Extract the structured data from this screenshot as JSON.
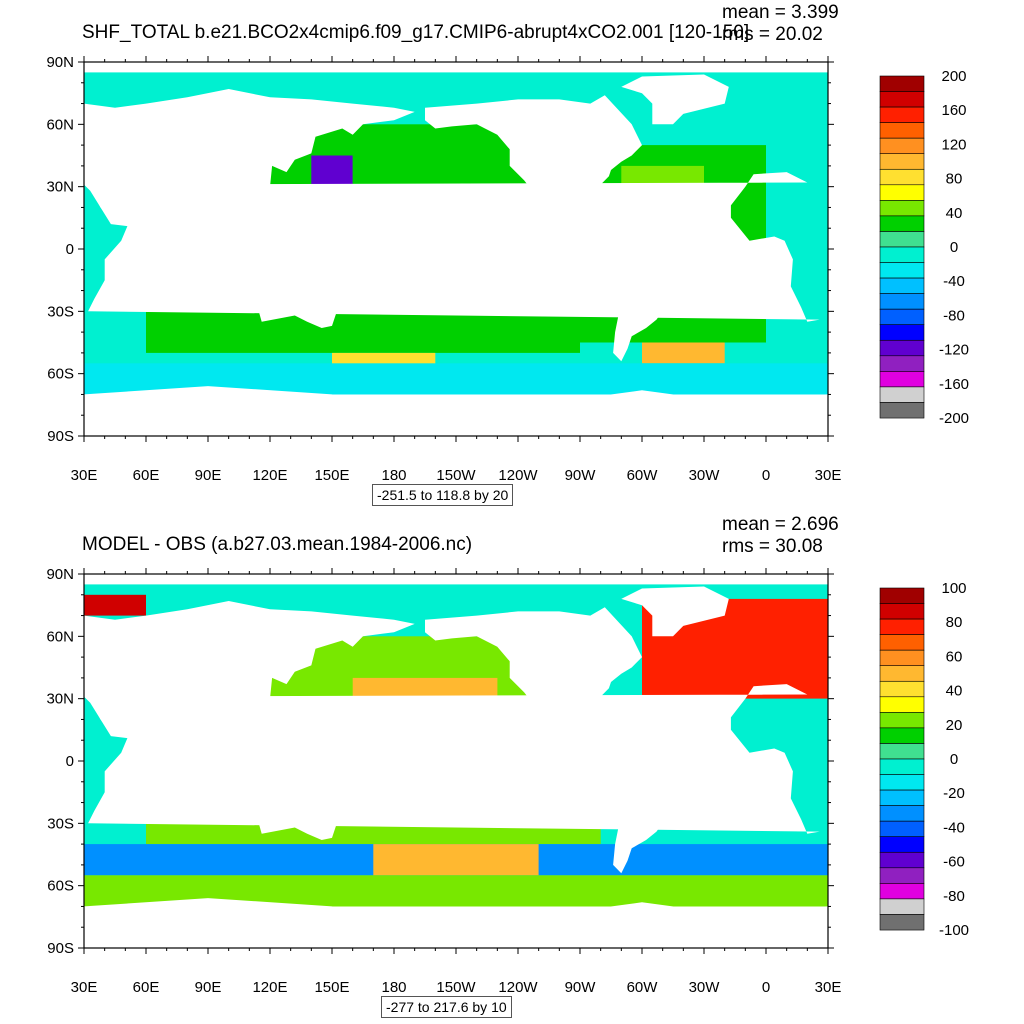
{
  "panels": [
    {
      "title": "SHF_TOTAL b.e21.BCO2x4cmip6.f09_g17.CMIP6-abrupt4xCO2.001 [120-150]",
      "mean_label": "mean = 3.399",
      "rms_label": "rms = 20.02",
      "contour_info": "-251.5 to 118.8 by 20",
      "colorbar": {
        "labels": [
          "200",
          "160",
          "120",
          "80",
          "40",
          "0",
          "-40",
          "-80",
          "-120",
          "-160",
          "-200"
        ],
        "colors": [
          "#a00000",
          "#d00000",
          "#ff2000",
          "#ff6000",
          "#ff9020",
          "#ffb830",
          "#ffe030",
          "#ffff00",
          "#78e800",
          "#00d000",
          "#40e090",
          "#00f0d0",
          "#00e8f0",
          "#00c0ff",
          "#0090ff",
          "#0060ff",
          "#0000ff",
          "#6000d0",
          "#9020c0",
          "#e000e0",
          "#d0d0d0",
          "#707070"
        ]
      }
    },
    {
      "title": "MODEL - OBS (a.b27.03.mean.1984-2006.nc)",
      "mean_label": "mean = 2.696",
      "rms_label": "rms = 30.08",
      "contour_info": "-277 to 217.6 by 10",
      "colorbar": {
        "labels": [
          "100",
          "80",
          "60",
          "40",
          "20",
          "0",
          "-20",
          "-40",
          "-60",
          "-80",
          "-100"
        ],
        "colors": [
          "#a00000",
          "#d00000",
          "#ff2000",
          "#ff6000",
          "#ff9020",
          "#ffb830",
          "#ffe030",
          "#ffff00",
          "#78e800",
          "#00d000",
          "#40e090",
          "#00f0d0",
          "#00e8f0",
          "#00c0ff",
          "#0090ff",
          "#0060ff",
          "#0000ff",
          "#6000d0",
          "#9020c0",
          "#e000e0",
          "#d0d0d0",
          "#707070"
        ]
      }
    }
  ],
  "axes": {
    "lat_labels": [
      "90N",
      "60N",
      "30N",
      "0",
      "30S",
      "60S",
      "90S"
    ],
    "lon_labels": [
      "30E",
      "60E",
      "90E",
      "120E",
      "150E",
      "180",
      "150W",
      "120W",
      "90W",
      "60W",
      "30W",
      "0",
      "30E"
    ]
  }
}
